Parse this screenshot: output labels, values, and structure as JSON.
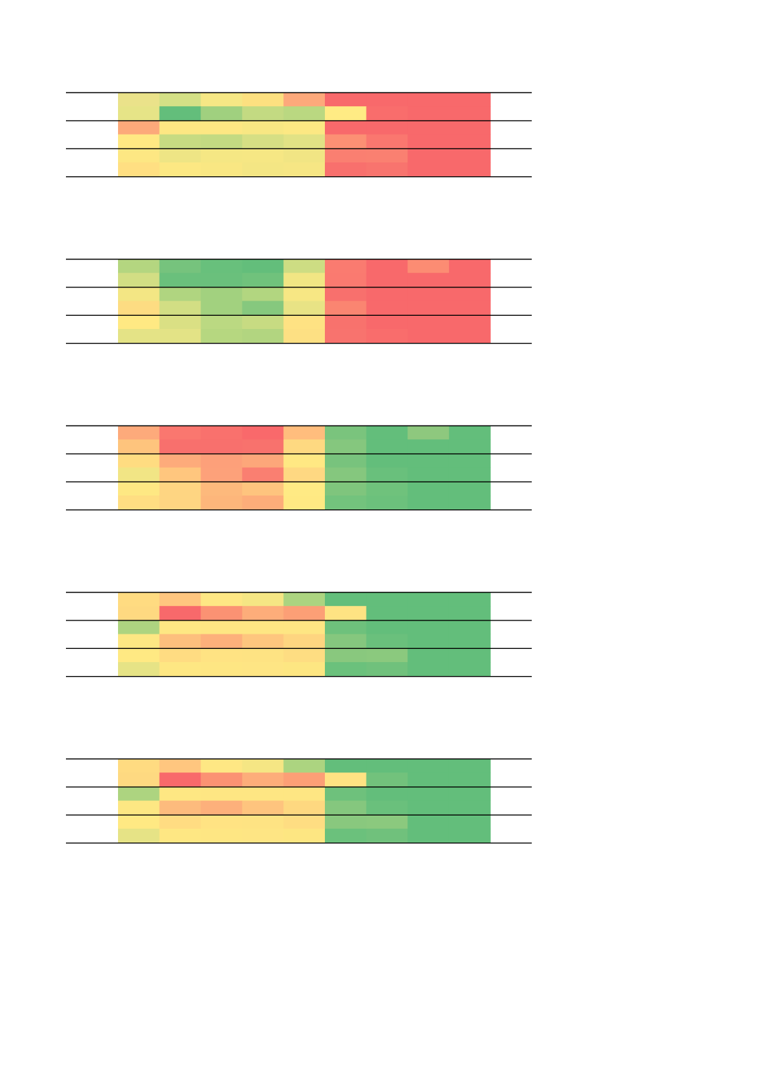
{
  "chart_data": [
    {
      "type": "heatmap",
      "rows": 6,
      "columns": 9,
      "colors": [
        [
          "#eae28a",
          "#d4e086",
          "#f6e785",
          "#fde080",
          "#fda97b",
          "#f8696b",
          "#f8696b",
          "#f8696b",
          "#f8696b"
        ],
        [
          "#e6e487",
          "#63be7b",
          "#a0d07f",
          "#c3da82",
          "#bad881",
          "#ffeb84",
          "#f96d6c",
          "#f8696b",
          "#f8696b"
        ],
        [
          "#fca97a",
          "#fde783",
          "#fde783",
          "#f8e783",
          "#fce883",
          "#f8696b",
          "#f8696b",
          "#f8696b",
          "#f8696b"
        ],
        [
          "#ffe883",
          "#c7db82",
          "#c3da82",
          "#d6df84",
          "#e1e285",
          "#fc9074",
          "#fa776f",
          "#f8696b",
          "#f8696b"
        ],
        [
          "#fde783",
          "#eee585",
          "#f5e784",
          "#f6e784",
          "#f1e584",
          "#fa7f71",
          "#fa8071",
          "#f8696b",
          "#f8696b"
        ],
        [
          "#ffdf82",
          "#fce883",
          "#f9e783",
          "#f4e684",
          "#f6e684",
          "#f8706d",
          "#f8746e",
          "#f8696b",
          "#f8696b"
        ]
      ]
    },
    {
      "type": "heatmap",
      "rows": 6,
      "columns": 9,
      "colors": [
        [
          "#b4d680",
          "#76c37d",
          "#68c07c",
          "#63be7b",
          "#cddd83",
          "#fa7b70",
          "#f8696b",
          "#fc8c73",
          "#f8696b"
        ],
        [
          "#d2de84",
          "#6ac07c",
          "#6ac07c",
          "#70c27c",
          "#f1e684",
          "#fa7a70",
          "#f8696b",
          "#f8696b",
          "#f8696b"
        ],
        [
          "#f3e684",
          "#b0d580",
          "#a2d17f",
          "#b2d680",
          "#f7e784",
          "#f8706d",
          "#f8696b",
          "#f8696b",
          "#f8696b"
        ],
        [
          "#fddc82",
          "#d2de84",
          "#a2d17f",
          "#86c87e",
          "#e8e385",
          "#fa8571",
          "#f8696b",
          "#f8696b",
          "#f8696b"
        ],
        [
          "#ffe983",
          "#dae084",
          "#bbd982",
          "#c7db82",
          "#fee283",
          "#f8726d",
          "#f8696b",
          "#f8696b",
          "#f8696b"
        ],
        [
          "#e4e386",
          "#e3e386",
          "#b6d780",
          "#b2d580",
          "#fde083",
          "#f8736e",
          "#f96d6c",
          "#f8696b",
          "#f8696b"
        ]
      ]
    },
    {
      "type": "heatmap",
      "rows": 6,
      "columns": 9,
      "colors": [
        [
          "#fdaa7b",
          "#fa776f",
          "#f9716d",
          "#f9696b",
          "#ffbd7d",
          "#7ac47d",
          "#63be7b",
          "#8ec87e",
          "#63be7b"
        ],
        [
          "#fec47d",
          "#f8706d",
          "#f8706d",
          "#f8726d",
          "#fed981",
          "#85c77e",
          "#63be7b",
          "#63be7b",
          "#63be7b"
        ],
        [
          "#ffdc81",
          "#fdab7b",
          "#fda07a",
          "#fda77a",
          "#ffe883",
          "#78c37d",
          "#63be7b",
          "#63be7b",
          "#63be7b"
        ],
        [
          "#f1e585",
          "#ffc67e",
          "#fda17a",
          "#fa7f71",
          "#fed882",
          "#85c77e",
          "#69c07c",
          "#63be7b",
          "#63be7b"
        ],
        [
          "#fee883",
          "#fed582",
          "#fdb97c",
          "#fec47e",
          "#ffea84",
          "#7fc57d",
          "#6fc27c",
          "#63be7b",
          "#63be7b"
        ],
        [
          "#ffde82",
          "#fed582",
          "#fdb67b",
          "#fdad7a",
          "#ffe983",
          "#73c37d",
          "#6cc17c",
          "#63be7b",
          "#63be7b"
        ]
      ]
    },
    {
      "type": "heatmap",
      "rows": 6,
      "columns": 9,
      "colors": [
        [
          "#ffdb81",
          "#ffc67f",
          "#fee784",
          "#f5e684",
          "#acd480",
          "#63be7b",
          "#63be7b",
          "#63be7b",
          "#63be7b"
        ],
        [
          "#fed981",
          "#f8696b",
          "#fb9273",
          "#fdad7a",
          "#fc9f76",
          "#fee383",
          "#63be7b",
          "#63be7b",
          "#63be7b"
        ],
        [
          "#add480",
          "#fee783",
          "#fee683",
          "#fee683",
          "#fee683",
          "#6ec17c",
          "#63be7b",
          "#63be7b",
          "#63be7b"
        ],
        [
          "#fde783",
          "#fdbf7d",
          "#fdb07b",
          "#fec67e",
          "#fed580",
          "#85c77e",
          "#6ac07c",
          "#63be7b",
          "#63be7b"
        ],
        [
          "#ffe983",
          "#ffdc82",
          "#ffe383",
          "#fee383",
          "#fedd82",
          "#89c87e",
          "#8bc97e",
          "#63be7b",
          "#63be7b"
        ],
        [
          "#e6e386",
          "#fee783",
          "#fee683",
          "#fee584",
          "#fde682",
          "#6bc17c",
          "#70c17c",
          "#63be7b",
          "#63be7b"
        ]
      ]
    },
    {
      "type": "heatmap",
      "rows": 6,
      "columns": 9,
      "colors": [
        [
          "#ffdb81",
          "#ffc67f",
          "#fee784",
          "#f5e684",
          "#acd480",
          "#63be7b",
          "#63be7b",
          "#63be7b",
          "#63be7b"
        ],
        [
          "#fed981",
          "#f8696b",
          "#fb9273",
          "#fdad7a",
          "#fc9f76",
          "#fee383",
          "#72c27c",
          "#63be7b",
          "#63be7b"
        ],
        [
          "#add480",
          "#fee783",
          "#fee683",
          "#fee683",
          "#fee683",
          "#6ec17c",
          "#63be7b",
          "#63be7b",
          "#63be7b"
        ],
        [
          "#fde783",
          "#fdbb7d",
          "#fdb07b",
          "#fec47e",
          "#fed880",
          "#85c77e",
          "#6ac07c",
          "#63be7b",
          "#63be7b"
        ],
        [
          "#ffe983",
          "#ffdc82",
          "#ffe383",
          "#fee383",
          "#fedd82",
          "#89c87e",
          "#8bc97e",
          "#63be7b",
          "#63be7b"
        ],
        [
          "#e6e386",
          "#fee783",
          "#fee683",
          "#fee584",
          "#fde682",
          "#6bc17c",
          "#70c17c",
          "#63be7b",
          "#63be7b"
        ]
      ]
    }
  ]
}
